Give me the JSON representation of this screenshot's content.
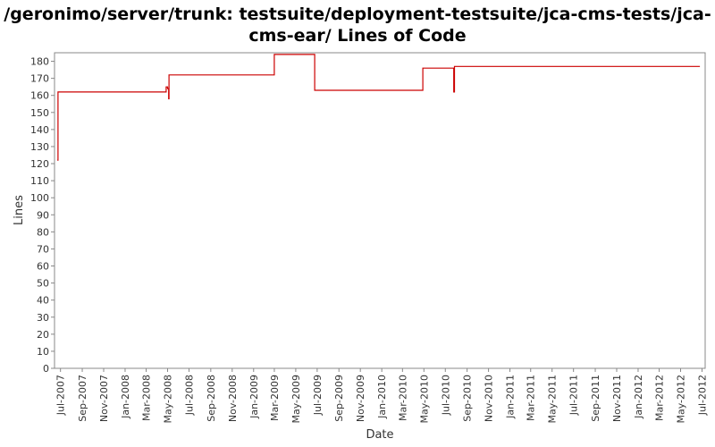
{
  "chart_data": {
    "type": "line",
    "title_lines": [
      "/geronimo/server/trunk: testsuite/deployment-testsuite/jca-cms-tests/jca-",
      "cms-ear/ Lines of Code"
    ],
    "xlabel": "Date",
    "ylabel": "Lines",
    "ylim": [
      0,
      185
    ],
    "yticks": [
      0,
      10,
      20,
      30,
      40,
      50,
      60,
      70,
      80,
      90,
      100,
      110,
      120,
      130,
      140,
      150,
      160,
      170,
      180
    ],
    "xlim": [
      "2007-06-14",
      "2012-07-10"
    ],
    "xticks": [
      {
        "date": "2007-07-01",
        "label": "Jul-2007"
      },
      {
        "date": "2007-09-01",
        "label": "Sep-2007"
      },
      {
        "date": "2007-11-01",
        "label": "Nov-2007"
      },
      {
        "date": "2008-01-01",
        "label": "Jan-2008"
      },
      {
        "date": "2008-03-01",
        "label": "Mar-2008"
      },
      {
        "date": "2008-05-01",
        "label": "May-2008"
      },
      {
        "date": "2008-07-01",
        "label": "Jul-2008"
      },
      {
        "date": "2008-09-01",
        "label": "Sep-2008"
      },
      {
        "date": "2008-11-01",
        "label": "Nov-2008"
      },
      {
        "date": "2009-01-01",
        "label": "Jan-2009"
      },
      {
        "date": "2009-03-01",
        "label": "Mar-2009"
      },
      {
        "date": "2009-05-01",
        "label": "May-2009"
      },
      {
        "date": "2009-07-01",
        "label": "Jul-2009"
      },
      {
        "date": "2009-09-01",
        "label": "Sep-2009"
      },
      {
        "date": "2009-11-01",
        "label": "Nov-2009"
      },
      {
        "date": "2010-01-01",
        "label": "Jan-2010"
      },
      {
        "date": "2010-03-01",
        "label": "Mar-2010"
      },
      {
        "date": "2010-05-01",
        "label": "May-2010"
      },
      {
        "date": "2010-07-01",
        "label": "Jul-2010"
      },
      {
        "date": "2010-09-01",
        "label": "Sep-2010"
      },
      {
        "date": "2010-11-01",
        "label": "Nov-2010"
      },
      {
        "date": "2011-01-01",
        "label": "Jan-2011"
      },
      {
        "date": "2011-03-01",
        "label": "Mar-2011"
      },
      {
        "date": "2011-05-01",
        "label": "May-2011"
      },
      {
        "date": "2011-07-01",
        "label": "Jul-2011"
      },
      {
        "date": "2011-09-01",
        "label": "Sep-2011"
      },
      {
        "date": "2011-11-01",
        "label": "Nov-2011"
      },
      {
        "date": "2012-01-01",
        "label": "Jan-2012"
      },
      {
        "date": "2012-03-01",
        "label": "Mar-2012"
      },
      {
        "date": "2012-05-01",
        "label": "May-2012"
      },
      {
        "date": "2012-07-01",
        "label": "Jul-2012"
      }
    ],
    "series": [
      {
        "color": "#cc0000",
        "step": true,
        "points": [
          {
            "x": "2007-06-22",
            "y": 122
          },
          {
            "x": "2007-06-24",
            "y": 162
          },
          {
            "x": "2008-04-27",
            "y": 165
          },
          {
            "x": "2008-05-01",
            "y": 164
          },
          {
            "x": "2008-05-04",
            "y": 158
          },
          {
            "x": "2008-05-05",
            "y": 172
          },
          {
            "x": "2009-03-01",
            "y": 184
          },
          {
            "x": "2009-06-24",
            "y": 163
          },
          {
            "x": "2010-04-28",
            "y": 176
          },
          {
            "x": "2010-07-25",
            "y": 162
          },
          {
            "x": "2010-07-27",
            "y": 177
          },
          {
            "x": "2012-06-25",
            "y": 177
          }
        ]
      }
    ]
  }
}
